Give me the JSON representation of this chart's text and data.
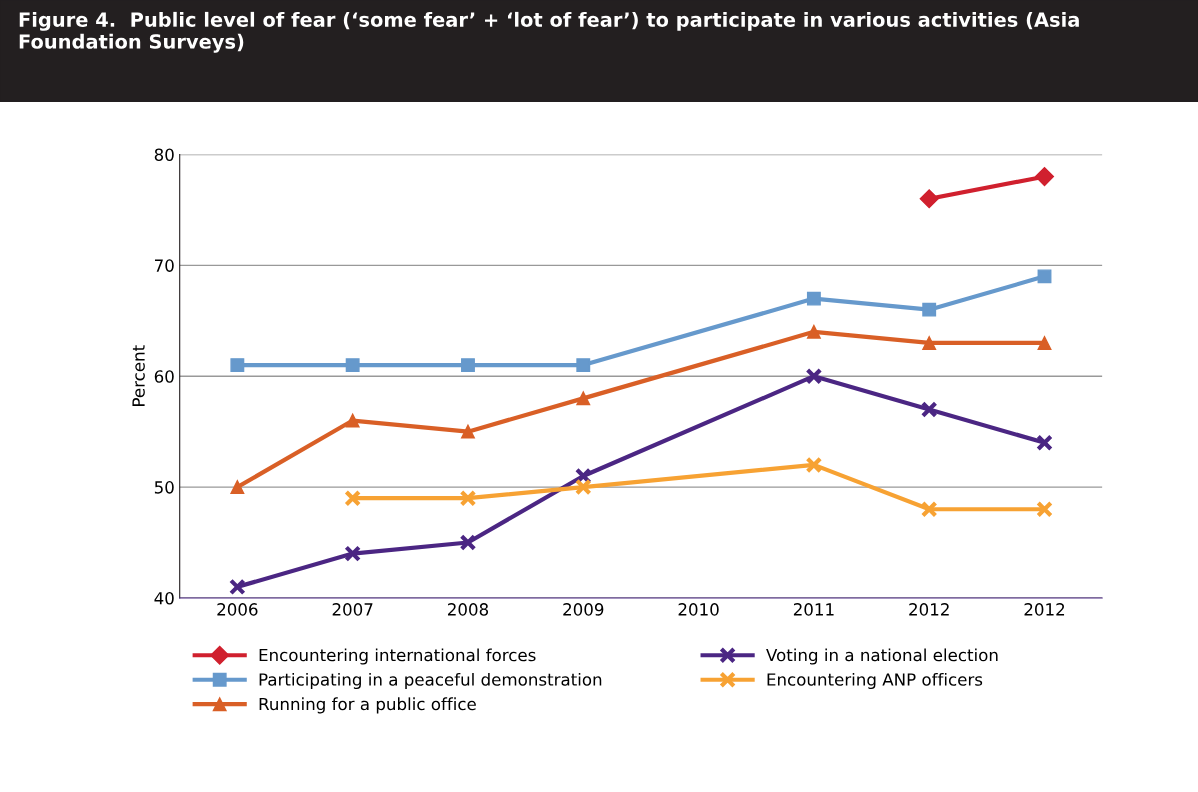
{
  "chart_data": {
    "type": "line",
    "title": "Figure 4.  Public level of fear (‘some fear’ + ‘lot of fear’) to participate in various activities (Asia Foundation Surveys)",
    "ylabel": "Percent",
    "categories": [
      "2006",
      "2007",
      "2008",
      "2009",
      "2010",
      "2011",
      "2012",
      "2012"
    ],
    "series": [
      {
        "name": "Encountering international forces",
        "color": "#d0202e",
        "marker": "diamond",
        "values": [
          null,
          null,
          null,
          null,
          null,
          null,
          76,
          78
        ]
      },
      {
        "name": "Participating in a peaceful demonstration",
        "color": "#6699cc",
        "marker": "square",
        "values": [
          61,
          61,
          61,
          61,
          null,
          67,
          66,
          69
        ]
      },
      {
        "name": "Running for a public office",
        "color": "#d95f26",
        "marker": "triangle",
        "values": [
          50,
          56,
          55,
          58,
          null,
          64,
          63,
          63
        ]
      },
      {
        "name": "Voting in a national election",
        "color": "#4b2683",
        "marker": "cross",
        "values": [
          41,
          44,
          45,
          51,
          null,
          60,
          57,
          54
        ]
      },
      {
        "name": "Encountering ANP officers",
        "color": "#f7a233",
        "marker": "cross",
        "values": [
          null,
          49,
          49,
          50,
          null,
          52,
          48,
          48
        ]
      }
    ],
    "ylim": [
      40,
      80
    ],
    "yticks": [
      40,
      50,
      60,
      70,
      80
    ],
    "grid": "y",
    "legend": "bottom",
    "line_style": "solid"
  }
}
